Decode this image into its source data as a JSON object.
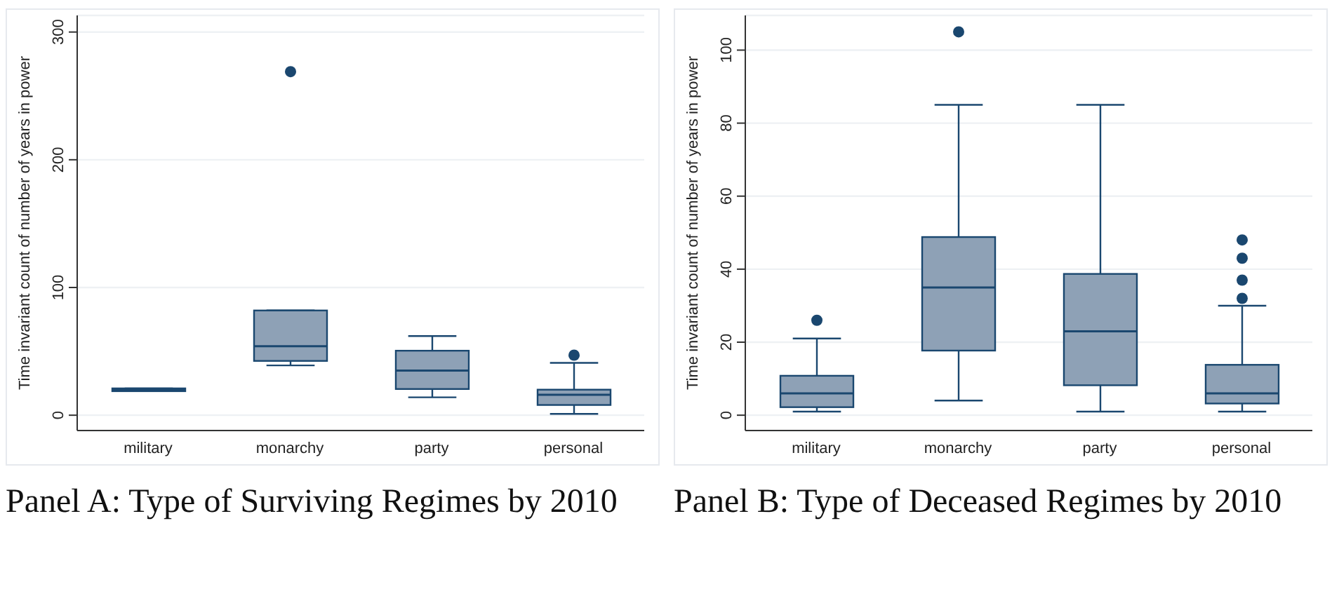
{
  "chart_data": [
    {
      "type": "box",
      "title": "Panel A: Type of Surviving Regimes by 2010",
      "ylabel": "Time invariant count of number of years in power",
      "categories": [
        "military",
        "monarchy",
        "party",
        "personal"
      ],
      "ylim": [
        -12,
        313
      ],
      "yticks": [
        0,
        100,
        200,
        300
      ],
      "grid": "y",
      "series": [
        {
          "color": "#8ea1b6",
          "boxes": [
            {
              "low": 19,
              "q1": 19,
              "median": 20,
              "q3": 21,
              "high": 21
            },
            {
              "low": 39,
              "q1": 42.5,
              "median": 54,
              "q3": 82,
              "high": 82,
              "outliers": [
                269
              ]
            },
            {
              "low": 14,
              "q1": 20.5,
              "median": 35,
              "q3": 50.5,
              "high": 62
            },
            {
              "low": 1,
              "q1": 8,
              "median": 16,
              "q3": 20,
              "high": 41,
              "outliers": [
                47
              ]
            }
          ]
        }
      ]
    },
    {
      "type": "box",
      "title": "Panel B: Type of Deceased Regimes by 2010",
      "ylabel": "Time invariant count of number of years in power",
      "categories": [
        "military",
        "monarchy",
        "party",
        "personal"
      ],
      "ylim": [
        -4.2,
        109.5
      ],
      "yticks": [
        0,
        20,
        40,
        60,
        80,
        100
      ],
      "grid": "y",
      "series": [
        {
          "color": "#8ea1b6",
          "boxes": [
            {
              "low": 1,
              "q1": 2.2,
              "median": 6,
              "q3": 10.8,
              "high": 21,
              "outliers": [
                26
              ]
            },
            {
              "low": 4,
              "q1": 17.7,
              "median": 35,
              "q3": 48.8,
              "high": 85,
              "outliers": [
                105
              ]
            },
            {
              "low": 1,
              "q1": 8.2,
              "median": 23,
              "q3": 38.7,
              "high": 85
            },
            {
              "low": 1,
              "q1": 3.2,
              "median": 6,
              "q3": 13.8,
              "high": 30,
              "outliers": [
                32,
                37,
                43,
                48
              ]
            }
          ]
        }
      ]
    }
  ]
}
